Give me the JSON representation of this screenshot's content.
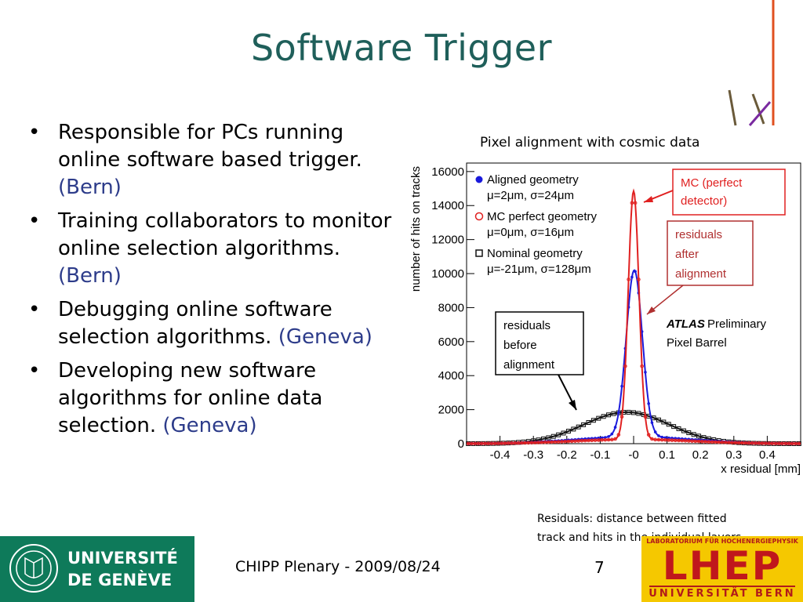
{
  "slide": {
    "title": "Software Trigger",
    "bullets": [
      {
        "text": "Responsible for PCs running online software based trigger.",
        "inst": "(Bern)"
      },
      {
        "text": "Training collaborators to monitor online selection algorithms.",
        "inst": "(Bern)"
      },
      {
        "text": "Debugging online software selection algorithms.",
        "inst": "(Geneva)"
      },
      {
        "text": "Developing new software algorithms for online data selection.",
        "inst": "(Geneva)"
      }
    ],
    "chart_caption": "Pixel alignment with cosmic data",
    "bottom_note_line1": "Residuals: distance between fitted",
    "bottom_note_line2": "track and hits in the individual layers",
    "footer_text": "CHIPP Plenary - 2009/08/24",
    "page_number": "7",
    "logos": {
      "unige_line1": "UNIVERSITÉ",
      "unige_line2": "DE GENÈVE",
      "lhep_top": "LABORATORIUM FÜR HOCHENERGIEPHYSIK",
      "lhep_main": "LHEP",
      "lhep_bottom": "UNIVERSITÄT BERN"
    }
  },
  "chart_data": {
    "type": "line",
    "xlabel": "x residual [mm]",
    "ylabel": "number of hits on tracks",
    "xlim": [
      -0.5,
      0.5
    ],
    "ylim": [
      0,
      16500
    ],
    "xticks": [
      -0.4,
      -0.3,
      -0.2,
      -0.1,
      0,
      0.1,
      0.2,
      0.3,
      0.4
    ],
    "xtick_labels": [
      "-0.4",
      "-0.3",
      "-0.2",
      "-0.1",
      "-0",
      "0.1",
      "0.2",
      "0.3",
      "0.4"
    ],
    "yticks": [
      0,
      2000,
      4000,
      6000,
      8000,
      10000,
      12000,
      14000,
      16000
    ],
    "ytick_labels": [
      "0",
      "2000",
      "4000",
      "6000",
      "8000",
      "10000",
      "12000",
      "14000",
      "16000"
    ],
    "series": [
      {
        "name": "Aligned geometry",
        "stats": "μ=2μm, σ=24μm",
        "color": "#1a1adc",
        "marker": "dot",
        "mean": 0.002,
        "sigma": 0.024,
        "peak": 9800,
        "base": 400
      },
      {
        "name": "MC perfect geometry",
        "stats": "μ=0μm, σ=16μm",
        "color": "#e02020",
        "marker": "open-circle",
        "mean": 0.0,
        "sigma": 0.016,
        "peak": 14600,
        "base": 250
      },
      {
        "name": "Nominal geometry",
        "stats": "μ=-21μm, σ=128μm",
        "color": "#111111",
        "marker": "open-square",
        "mean": -0.021,
        "sigma": 0.128,
        "peak": 1850,
        "base": 0
      }
    ],
    "atlas_label": "ATLAS",
    "atlas_label2": "Preliminary",
    "atlas_label3": "Pixel Barrel",
    "annotations": [
      {
        "id": "mc",
        "lines": [
          "MC (perfect",
          "detector)"
        ],
        "color": "#e02020"
      },
      {
        "id": "after",
        "lines": [
          "residuals",
          "after",
          "alignment"
        ],
        "color": "#b03030"
      },
      {
        "id": "before",
        "lines": [
          "residuals",
          "before",
          "alignment"
        ],
        "color": "#000000"
      }
    ]
  },
  "colors": {
    "title": "#1f5f5a",
    "institution": "#2d3c8a",
    "unige_green": "#0e7a5a",
    "lhep_yellow": "#f5c800",
    "lhep_red": "#c0171c"
  }
}
